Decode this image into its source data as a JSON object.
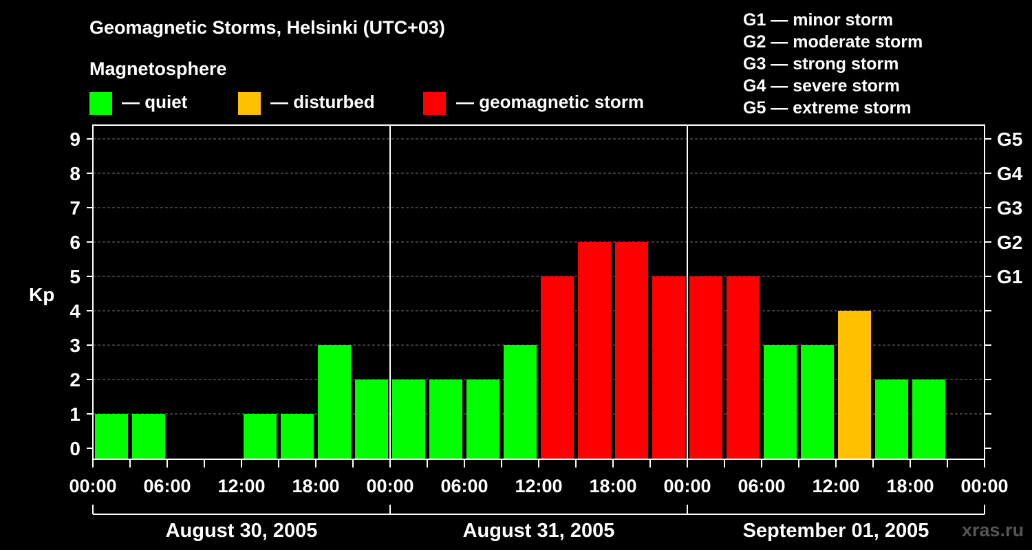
{
  "chart_data": {
    "type": "bar",
    "title": "Geomagnetic Storms, Helsinki (UTC+03)",
    "legend_title": "Magnetosphere",
    "legend": [
      {
        "label": "— quiet",
        "color": "#00ff00"
      },
      {
        "label": "— disturbed",
        "color": "#ffc000"
      },
      {
        "label": "— geomagnetic storm",
        "color": "#ff0000"
      }
    ],
    "scale_notes": [
      "G1 — minor storm",
      "G2 — moderate storm",
      "G3 — strong storm",
      "G4 — severe storm",
      "G5 — extreme storm"
    ],
    "ylabel": "Kp",
    "ylim": [
      0,
      9
    ],
    "yticks": [
      "0",
      "1",
      "2",
      "3",
      "4",
      "5",
      "6",
      "7",
      "8",
      "9"
    ],
    "right_ticks": [
      {
        "kp": 5,
        "label": "G1"
      },
      {
        "kp": 6,
        "label": "G2"
      },
      {
        "kp": 7,
        "label": "G3"
      },
      {
        "kp": 8,
        "label": "G4"
      },
      {
        "kp": 9,
        "label": "G5"
      }
    ],
    "xtick_labels": [
      "00:00",
      "06:00",
      "12:00",
      "18:00",
      "00:00",
      "06:00",
      "12:00",
      "18:00",
      "00:00",
      "06:00",
      "12:00",
      "18:00",
      "00:00"
    ],
    "days": [
      "August 30, 2005",
      "August 31, 2005",
      "September 01, 2005"
    ],
    "interval_hours": 3,
    "values": [
      1,
      1,
      0,
      0,
      1,
      1,
      3,
      2,
      2,
      2,
      2,
      3,
      5,
      6,
      6,
      5,
      5,
      5,
      3,
      3,
      4,
      2,
      2,
      0
    ],
    "colors": {
      "quiet": "#00ff00",
      "disturbed": "#ffc000",
      "storm": "#ff0000"
    },
    "grid": "dashed horizontal",
    "watermark": "xras.ru"
  }
}
